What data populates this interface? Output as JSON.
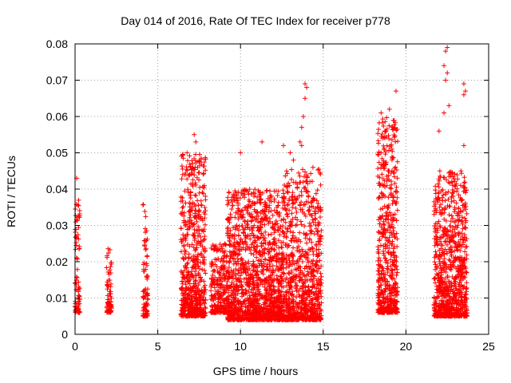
{
  "chart_data": {
    "type": "scatter",
    "title": "Day 014 of 2016, Rate Of TEC Index for receiver p778",
    "xlabel": "GPS time / hours",
    "ylabel": "ROTI / TECUs",
    "xlim": [
      0,
      25
    ],
    "ylim": [
      0,
      0.08
    ],
    "xticks": [
      0,
      5,
      10,
      15,
      20,
      25
    ],
    "yticks": [
      0,
      0.01,
      0.02,
      0.03,
      0.04,
      0.05,
      0.06,
      0.07,
      0.08
    ],
    "xtick_labels": [
      "0",
      "5",
      "10",
      "15",
      "20",
      "25"
    ],
    "ytick_labels": [
      "0",
      "0.01",
      "0.02",
      "0.03",
      "0.04",
      "0.05",
      "0.06",
      "0.07",
      "0.08"
    ],
    "grid": true,
    "marker": "+",
    "color": "#ff0000",
    "series": [
      {
        "name": "ROTI",
        "clusters": [
          {
            "x": [
              0.0,
              0.3
            ],
            "ymin": 0.006,
            "ymax": 0.037,
            "n": 90
          },
          {
            "x": [
              1.9,
              2.2
            ],
            "ymin": 0.006,
            "ymax": 0.025,
            "n": 70
          },
          {
            "x": [
              4.1,
              4.4
            ],
            "ymin": 0.005,
            "ymax": 0.036,
            "n": 90
          },
          {
            "x": [
              6.4,
              7.9
            ],
            "ymin": 0.005,
            "ymax": 0.05,
            "n": 650
          },
          {
            "x": [
              8.2,
              9.2
            ],
            "ymin": 0.006,
            "ymax": 0.025,
            "n": 250
          },
          {
            "x": [
              9.2,
              12.5
            ],
            "ymin": 0.004,
            "ymax": 0.04,
            "n": 1400
          },
          {
            "x": [
              12.5,
              14.9
            ],
            "ymin": 0.004,
            "ymax": 0.046,
            "n": 900
          },
          {
            "x": [
              18.3,
              19.5
            ],
            "ymin": 0.006,
            "ymax": 0.06,
            "n": 550
          },
          {
            "x": [
              21.7,
              23.7
            ],
            "ymin": 0.005,
            "ymax": 0.045,
            "n": 900
          }
        ],
        "outliers": [
          [
            0.1,
            0.043
          ],
          [
            7.2,
            0.055
          ],
          [
            7.3,
            0.053
          ],
          [
            7.1,
            0.047
          ],
          [
            10.0,
            0.05
          ],
          [
            11.3,
            0.053
          ],
          [
            12.6,
            0.052
          ],
          [
            13.2,
            0.048
          ],
          [
            13.0,
            0.05
          ],
          [
            13.9,
            0.069
          ],
          [
            14.0,
            0.068
          ],
          [
            13.8,
            0.06
          ],
          [
            13.9,
            0.065
          ],
          [
            13.7,
            0.057
          ],
          [
            13.6,
            0.053
          ],
          [
            13.7,
            0.052
          ],
          [
            19.0,
            0.062
          ],
          [
            18.5,
            0.061
          ],
          [
            19.4,
            0.067
          ],
          [
            19.2,
            0.057
          ],
          [
            18.8,
            0.056
          ],
          [
            22.4,
            0.078
          ],
          [
            22.5,
            0.079
          ],
          [
            22.3,
            0.074
          ],
          [
            22.5,
            0.072
          ],
          [
            22.4,
            0.07
          ],
          [
            22.6,
            0.063
          ],
          [
            22.3,
            0.061
          ],
          [
            23.5,
            0.069
          ],
          [
            23.6,
            0.067
          ],
          [
            23.5,
            0.066
          ],
          [
            22.0,
            0.056
          ],
          [
            23.5,
            0.052
          ]
        ]
      }
    ]
  }
}
